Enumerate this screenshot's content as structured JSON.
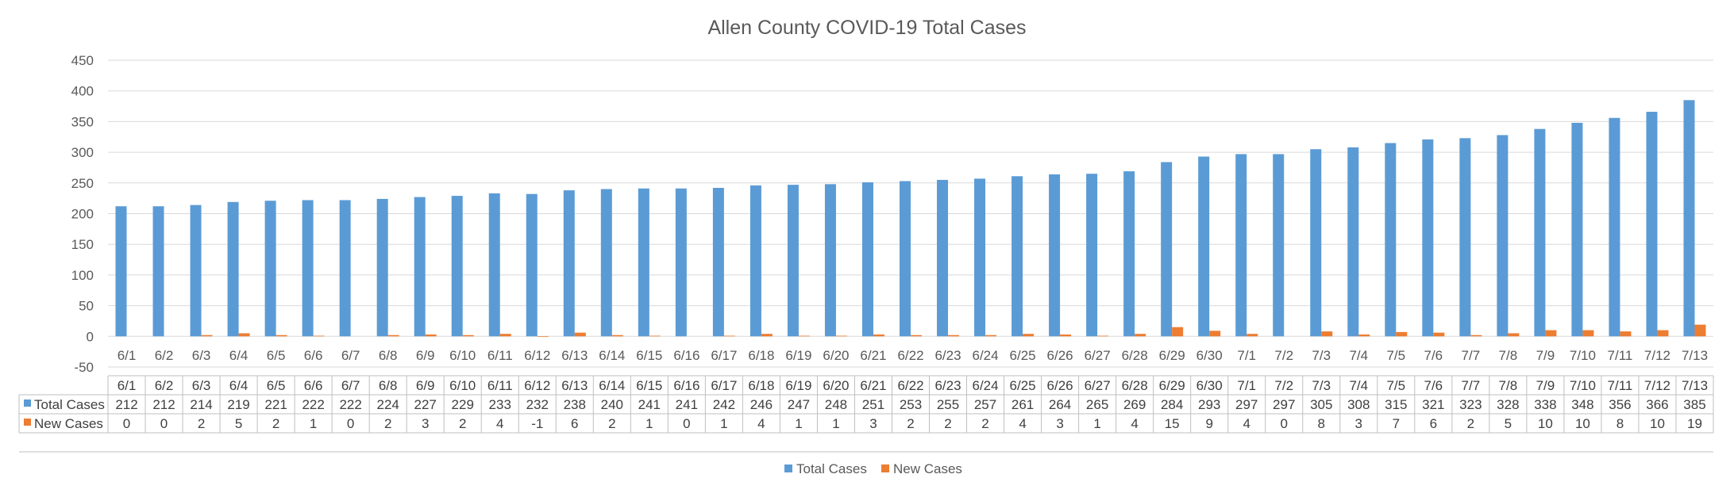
{
  "chart_data": {
    "type": "bar",
    "title": "Allen County COVID-19 Total Cases",
    "categories": [
      "6/1",
      "6/2",
      "6/3",
      "6/4",
      "6/5",
      "6/6",
      "6/7",
      "6/8",
      "6/9",
      "6/10",
      "6/11",
      "6/12",
      "6/13",
      "6/14",
      "6/15",
      "6/16",
      "6/17",
      "6/18",
      "6/19",
      "6/20",
      "6/21",
      "6/22",
      "6/23",
      "6/24",
      "6/25",
      "6/26",
      "6/27",
      "6/28",
      "6/29",
      "6/30",
      "7/1",
      "7/2",
      "7/3",
      "7/4",
      "7/5",
      "7/6",
      "7/7",
      "7/8",
      "7/9",
      "7/10",
      "7/11",
      "7/12",
      "7/13"
    ],
    "series": [
      {
        "name": "Total Cases",
        "color": "#5B9BD5",
        "values": [
          212,
          212,
          214,
          219,
          221,
          222,
          222,
          224,
          227,
          229,
          233,
          232,
          238,
          240,
          241,
          241,
          242,
          246,
          247,
          248,
          251,
          253,
          255,
          257,
          261,
          264,
          265,
          269,
          284,
          293,
          297,
          297,
          305,
          308,
          315,
          321,
          323,
          328,
          338,
          348,
          356,
          366,
          385
        ]
      },
      {
        "name": "New Cases",
        "color": "#ED7D31",
        "values": [
          0,
          0,
          2,
          5,
          2,
          1,
          0,
          2,
          3,
          2,
          4,
          -1,
          6,
          2,
          1,
          0,
          1,
          4,
          1,
          1,
          3,
          2,
          2,
          2,
          4,
          3,
          1,
          4,
          15,
          9,
          4,
          0,
          8,
          3,
          7,
          6,
          2,
          5,
          10,
          10,
          8,
          10,
          19
        ]
      }
    ],
    "ylim": [
      -50,
      450
    ],
    "yticks": [
      -50,
      0,
      50,
      100,
      150,
      200,
      250,
      300,
      350,
      400,
      450
    ],
    "grid": true,
    "data_table": true,
    "legend": "bottom-center"
  }
}
